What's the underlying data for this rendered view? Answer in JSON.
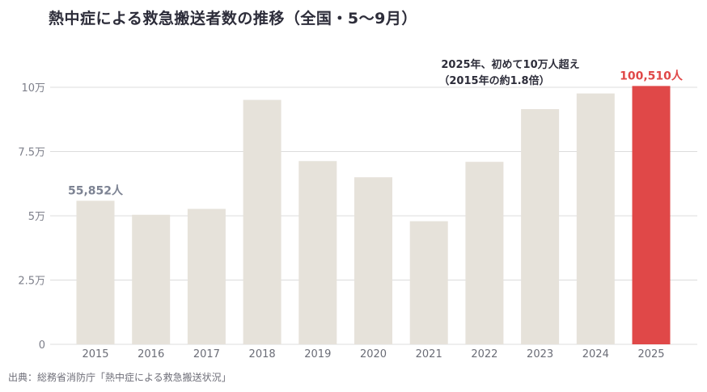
{
  "title": "熱中症による救急搬送者数の推移（全国・5〜9月）",
  "source": "出典：総務省消防庁「熱中症による救急搬送状況」",
  "colors": {
    "bar": "#e6e2da",
    "highlight": "#e04848",
    "first_label": "#7d8393",
    "grid": "#dcdcdc"
  },
  "chart_data": {
    "type": "bar",
    "title": "熱中症による救急搬送者数の推移（全国・5〜9月）",
    "xlabel": "",
    "ylabel": "",
    "categories": [
      "2015",
      "2016",
      "2017",
      "2018",
      "2019",
      "2020",
      "2021",
      "2022",
      "2023",
      "2024",
      "2025"
    ],
    "values": [
      55852,
      50400,
      52700,
      95100,
      71300,
      65000,
      47900,
      71000,
      91500,
      97600,
      100510
    ],
    "ylim": [
      0,
      100000
    ],
    "yticks": [
      {
        "value": 0,
        "label": "0"
      },
      {
        "value": 25000,
        "label": "2.5万"
      },
      {
        "value": 50000,
        "label": "5万"
      },
      {
        "value": 75000,
        "label": "7.5万"
      },
      {
        "value": 100000,
        "label": "10万"
      }
    ],
    "grid": true,
    "highlight_index": 10,
    "data_labels": [
      {
        "index": 0,
        "text": "55,852人"
      },
      {
        "index": 10,
        "text": "100,510人"
      }
    ],
    "annotation": {
      "line1": "2025年、初めて10万人超え",
      "line2": "（2015年の約1.8倍）"
    }
  }
}
